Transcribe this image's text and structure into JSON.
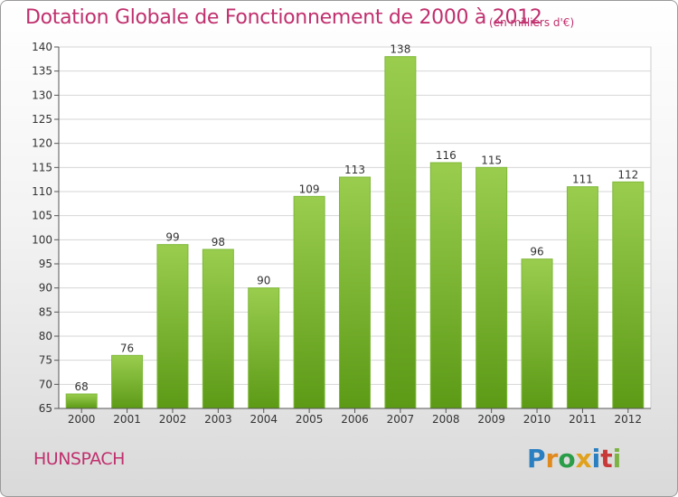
{
  "header": {
    "title": "Dotation Globale de Fonctionnement de 2000 à 2012",
    "subtitle": "(en milliers d'€)"
  },
  "footer": {
    "commune": "HUNSPACH",
    "logo_text": "Proxiti"
  },
  "colors": {
    "title": "#c0306e",
    "bar_top": "#9acd4e",
    "bar_bottom": "#5c9a16"
  },
  "chart_data": {
    "type": "bar",
    "categories": [
      "2000",
      "2001",
      "2002",
      "2003",
      "2004",
      "2005",
      "2006",
      "2007",
      "2008",
      "2009",
      "2010",
      "2011",
      "2012"
    ],
    "values": [
      68,
      76,
      99,
      98,
      90,
      109,
      113,
      138,
      116,
      115,
      96,
      111,
      112
    ],
    "ylim": [
      65,
      140
    ],
    "yticks": [
      65,
      70,
      75,
      80,
      85,
      90,
      95,
      100,
      105,
      110,
      115,
      120,
      125,
      130,
      135,
      140
    ],
    "grid": true,
    "data_labels": true
  }
}
